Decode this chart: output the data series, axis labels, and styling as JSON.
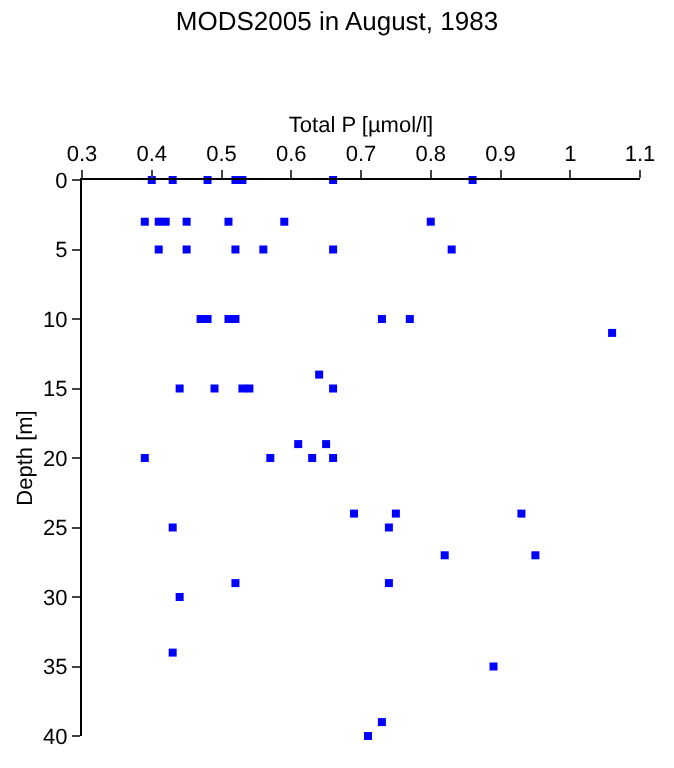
{
  "chart_data": {
    "type": "scatter",
    "title": "MODS2005 in August, 1983",
    "xlabel": "Total P [µmol/l]",
    "ylabel": "Depth [m]",
    "series": [
      {
        "color": "#0000ff",
        "x": [
          0.4,
          0.43,
          0.48,
          0.52,
          0.53,
          0.66,
          0.86,
          0.39,
          0.41,
          0.42,
          0.45,
          0.51,
          0.59,
          0.8,
          0.41,
          0.45,
          0.52,
          0.56,
          0.66,
          0.83,
          0.47,
          0.48,
          0.51,
          0.52,
          0.73,
          0.77,
          1.06,
          0.64,
          0.44,
          0.49,
          0.53,
          0.54,
          0.66,
          0.61,
          0.65,
          0.39,
          0.57,
          0.63,
          0.66,
          0.69,
          0.75,
          0.93,
          0.43,
          0.74,
          0.82,
          0.95,
          0.52,
          0.74,
          0.44,
          0.43,
          0.89,
          0.73,
          0.71
        ],
        "values": [
          0,
          0,
          0,
          0,
          0,
          0,
          0,
          3,
          3,
          3,
          3,
          3,
          3,
          3,
          5,
          5,
          5,
          5,
          5,
          5,
          10,
          10,
          10,
          10,
          10,
          10,
          11,
          14,
          15,
          15,
          15,
          15,
          15,
          19,
          19,
          20,
          20,
          20,
          20,
          24,
          24,
          24,
          25,
          25,
          27,
          27,
          29,
          29,
          30,
          34,
          35,
          39,
          40
        ]
      }
    ],
    "xlim": [
      0.3,
      1.1
    ],
    "xticks": [
      0.3,
      0.4,
      0.5,
      0.6,
      0.7,
      0.8,
      0.9,
      1,
      1.1
    ],
    "ylim": [
      40,
      0
    ],
    "yticks": [
      0,
      5,
      10,
      15,
      20,
      25,
      30,
      35,
      40
    ],
    "marker": "square"
  }
}
